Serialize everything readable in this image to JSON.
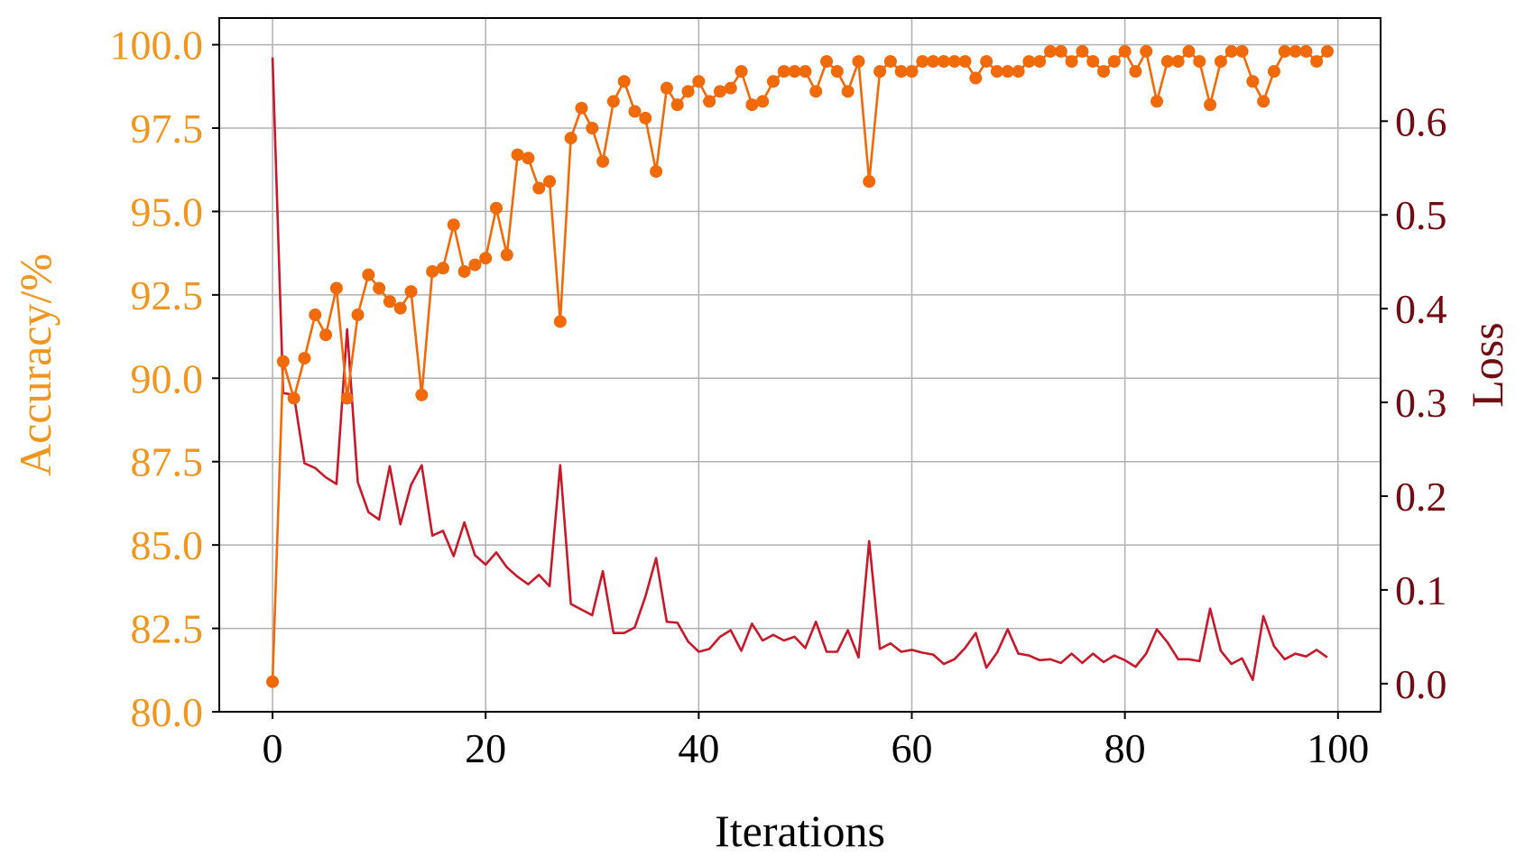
{
  "chart_data": {
    "type": "line",
    "xlabel": "Iterations",
    "ylabel_left": "Accuracy/%",
    "ylabel_right": "Loss",
    "xlim": [
      -5,
      104
    ],
    "ylim_left": [
      80.0,
      100.8
    ],
    "ylim_right": [
      -0.03,
      0.71
    ],
    "x_ticks": [
      0,
      20,
      40,
      60,
      80,
      100
    ],
    "y_left_ticks": [
      "80.0",
      "82.5",
      "85.0",
      "87.5",
      "90.0",
      "92.5",
      "95.0",
      "97.5",
      "100.0"
    ],
    "y_right_ticks": [
      "0.0",
      "0.1",
      "0.2",
      "0.3",
      "0.4",
      "0.5",
      "0.6"
    ],
    "grid": true,
    "series": [
      {
        "axis": "left",
        "color": "#f06a0a",
        "marker": "circle",
        "values": [
          80.9,
          90.5,
          89.4,
          90.6,
          91.9,
          91.3,
          92.7,
          89.4,
          91.9,
          93.1,
          92.7,
          92.3,
          92.1,
          92.6,
          89.5,
          93.2,
          93.3,
          94.6,
          93.2,
          93.4,
          93.6,
          95.1,
          93.7,
          96.7,
          96.6,
          95.7,
          95.9,
          91.7,
          97.2,
          98.1,
          97.5,
          96.5,
          98.3,
          98.9,
          98.0,
          97.8,
          96.2,
          98.7,
          98.2,
          98.6,
          98.9,
          98.3,
          98.6,
          98.7,
          99.2,
          98.2,
          98.3,
          98.9,
          99.2,
          99.2,
          99.2,
          98.6,
          99.5,
          99.2,
          98.6,
          99.5,
          95.9,
          99.2,
          99.5,
          99.2,
          99.2,
          99.5,
          99.5,
          99.5,
          99.5,
          99.5,
          99.0,
          99.5,
          99.2,
          99.2,
          99.2,
          99.5,
          99.5,
          99.8,
          99.8,
          99.5,
          99.8,
          99.5,
          99.2,
          99.5,
          99.8,
          99.2,
          99.8,
          98.3,
          99.5,
          99.5,
          99.8,
          99.5,
          98.2,
          99.5,
          99.8,
          99.8,
          98.9,
          98.3,
          99.2,
          99.8,
          99.8,
          99.8,
          99.5,
          99.8
        ]
      },
      {
        "axis": "right",
        "color": "#c8192a",
        "marker": "none",
        "values": [
          0.668,
          0.31,
          0.308,
          0.235,
          0.23,
          0.22,
          0.213,
          0.378,
          0.215,
          0.183,
          0.175,
          0.232,
          0.17,
          0.212,
          0.233,
          0.158,
          0.163,
          0.136,
          0.172,
          0.137,
          0.127,
          0.14,
          0.124,
          0.114,
          0.106,
          0.116,
          0.104,
          0.233,
          0.085,
          0.079,
          0.073,
          0.12,
          0.054,
          0.054,
          0.06,
          0.093,
          0.134,
          0.066,
          0.065,
          0.045,
          0.034,
          0.037,
          0.05,
          0.057,
          0.035,
          0.064,
          0.046,
          0.052,
          0.046,
          0.05,
          0.038,
          0.066,
          0.034,
          0.034,
          0.057,
          0.028,
          0.152,
          0.037,
          0.043,
          0.034,
          0.036,
          0.033,
          0.031,
          0.021,
          0.026,
          0.038,
          0.054,
          0.017,
          0.033,
          0.058,
          0.032,
          0.03,
          0.025,
          0.026,
          0.022,
          0.032,
          0.022,
          0.032,
          0.023,
          0.03,
          0.025,
          0.018,
          0.032,
          0.058,
          0.044,
          0.026,
          0.026,
          0.024,
          0.08,
          0.035,
          0.021,
          0.027,
          0.004,
          0.072,
          0.04,
          0.026,
          0.032,
          0.029,
          0.036,
          0.028
        ]
      }
    ]
  },
  "colors": {
    "left_axis": "#f0961e",
    "right_axis": "#730b12",
    "grid": "#b0b0b0",
    "frame": "#000000"
  }
}
